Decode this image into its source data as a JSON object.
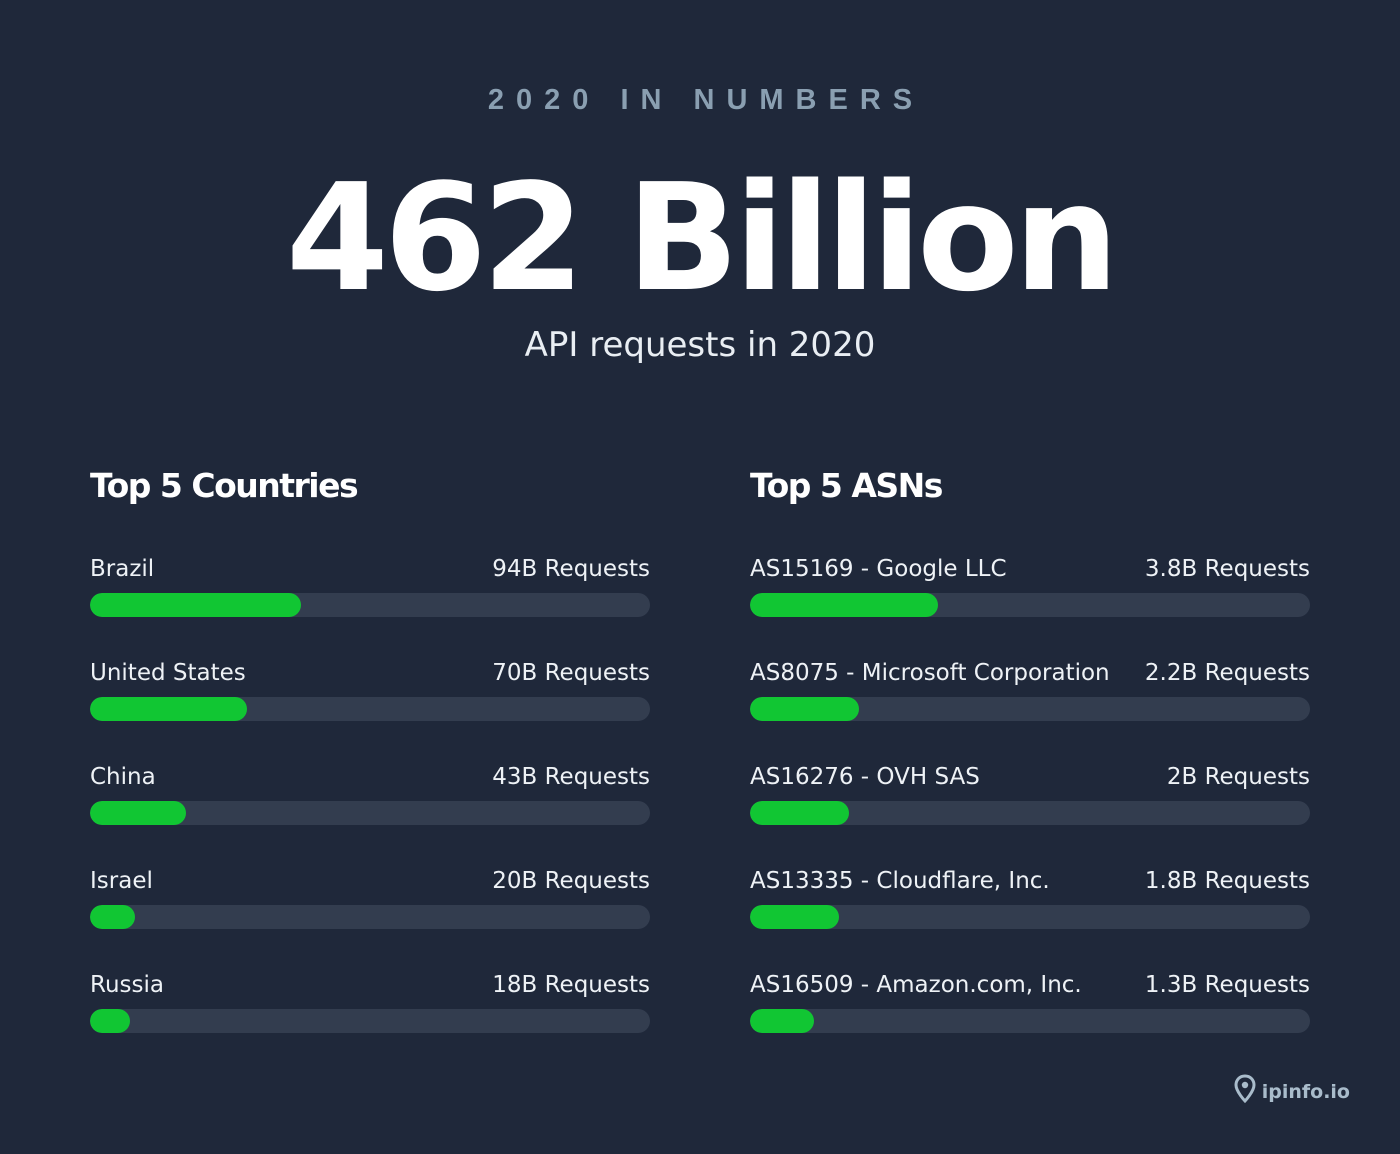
{
  "header": {
    "eyebrow": "2020 IN NUMBERS",
    "headline": "462 Billion",
    "subhead": "API requests in 2020"
  },
  "colors": {
    "background": "#1f283a",
    "bar_fill": "#11c633",
    "bar_track": "#333d4f",
    "eyebrow": "#8a9fb1"
  },
  "logo": {
    "text": "ipinfo.io",
    "icon": "location-pin-icon"
  },
  "chart_data": [
    {
      "type": "bar",
      "orientation": "horizontal",
      "title": "Top 5 Countries",
      "xlim": [
        0,
        250
      ],
      "categories": [
        "Brazil",
        "United States",
        "China",
        "Israel",
        "Russia"
      ],
      "values": [
        94,
        70,
        43,
        20,
        18
      ],
      "unit": "B",
      "value_labels": [
        "94B Requests",
        "70B Requests",
        "43B Requests",
        "20B Requests",
        "18B Requests"
      ],
      "grid": false,
      "legend": "none"
    },
    {
      "type": "bar",
      "orientation": "horizontal",
      "title": "Top 5 ASNs",
      "xlim": [
        0,
        11.3
      ],
      "categories": [
        "AS15169 - Google LLC",
        "AS8075 - Microsoft Corporation",
        "AS16276 - OVH SAS",
        "AS13335 - Cloudflare, Inc.",
        "AS16509 - Amazon.com, Inc."
      ],
      "values": [
        3.8,
        2.2,
        2,
        1.8,
        1.3
      ],
      "unit": "B",
      "value_labels": [
        "3.8B Requests",
        "2.2B Requests",
        "2B Requests",
        "1.8B Requests",
        "1.3B Requests"
      ],
      "grid": false,
      "legend": "none"
    }
  ]
}
